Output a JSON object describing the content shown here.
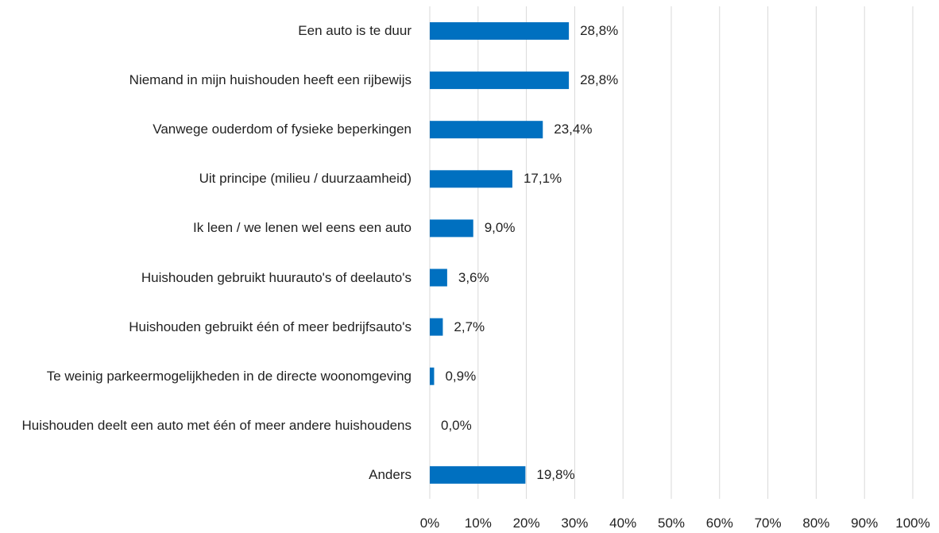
{
  "chart_data": {
    "type": "bar",
    "orientation": "horizontal",
    "categories": [
      "Een auto is te duur",
      "Niemand in mijn huishouden heeft een rijbewijs",
      "Vanwege ouderdom of fysieke beperkingen",
      "Uit principe (milieu / duurzaamheid)",
      "Ik leen / we lenen wel eens een auto",
      "Huishouden  gebruikt  huurauto's of deelauto's",
      "Huishouden gebruikt één of meer bedrijfsauto's",
      "Te weinig parkeermogelijkheden in de directe woonomgeving",
      "Huishouden deelt een auto met één of meer andere huishoudens",
      "Anders"
    ],
    "values": [
      28.8,
      28.8,
      23.4,
      17.1,
      9.0,
      3.6,
      2.7,
      0.9,
      0.0,
      19.8
    ],
    "value_labels": [
      "28,8%",
      "28,8%",
      "23,4%",
      "17,1%",
      "9,0%",
      "3,6%",
      "2,7%",
      "0,9%",
      "0,0%",
      "19,8%"
    ],
    "color": "#0070c0",
    "xlim": [
      0,
      100
    ],
    "xticks": [
      {
        "value": 0,
        "label": "0%"
      },
      {
        "value": 10,
        "label": "10%"
      },
      {
        "value": 20,
        "label": "20%"
      },
      {
        "value": 30,
        "label": "30%"
      },
      {
        "value": 40,
        "label": "40%"
      },
      {
        "value": 50,
        "label": "50%"
      },
      {
        "value": 60,
        "label": "60%"
      },
      {
        "value": 70,
        "label": "70%"
      },
      {
        "value": 80,
        "label": "80%"
      },
      {
        "value": 90,
        "label": "90%"
      },
      {
        "value": 100,
        "label": "100%"
      }
    ],
    "grid": true
  }
}
